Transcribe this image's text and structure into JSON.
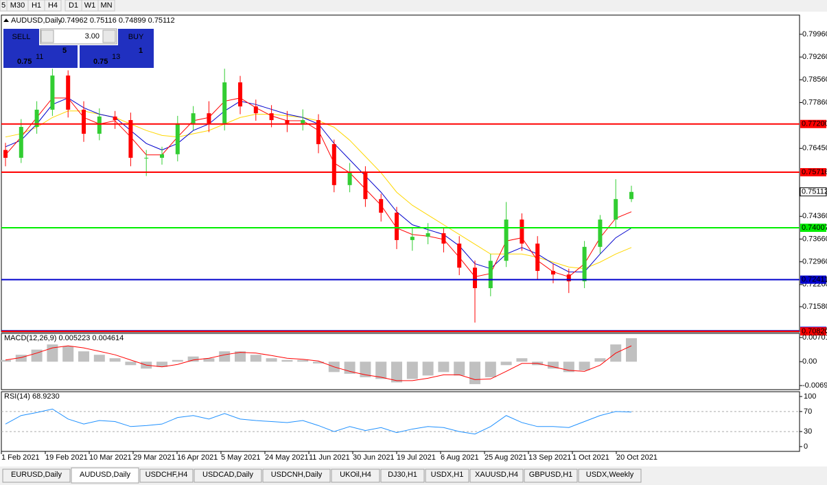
{
  "toolbar": [
    "5",
    "M30",
    "H1",
    "H4",
    "D1",
    "W1",
    "MN"
  ],
  "trade_panel": {
    "sell": "SELL",
    "buy": "BUY",
    "volume": "3.00",
    "bid": {
      "prefix": "0.75",
      "big": "11",
      "small": "5"
    },
    "ask": {
      "prefix": "0.75",
      "big": "13",
      "small": "1"
    }
  },
  "chart_data": {
    "type": "candlestick",
    "title": "AUDUSD,Daily",
    "ohlc_text": "0.74962 0.75116 0.74899 0.75112",
    "x_labels": [
      "1 Feb 2021",
      "19 Feb 2021",
      "10 Mar 2021",
      "29 Mar 2021",
      "16 Apr 2021",
      "5 May 2021",
      "24 May 2021",
      "11 Jun 2021",
      "30 Jun 2021",
      "19 Jul 2021",
      "6 Aug 2021",
      "25 Aug 2021",
      "13 Sep 2021",
      "1 Oct 2021",
      "20 Oct 2021"
    ],
    "up_color": "#32cd32",
    "down_color": "#ff0000",
    "open": [
      0.764,
      0.7616,
      0.7711,
      0.7764,
      0.7869,
      0.7764,
      0.769,
      0.7743,
      0.7732,
      0.7616,
      0.7616,
      0.7627,
      0.7722,
      0.7753,
      0.7722,
      0.7848,
      0.7774,
      0.7753,
      0.7732,
      0.7722,
      0.7732,
      0.7658,
      0.7532,
      0.7574,
      0.7489,
      0.7447,
      0.7363,
      0.7373,
      0.7384,
      0.7352,
      0.7278,
      0.7215,
      0.7299,
      0.7426,
      0.7352,
      0.7268,
      0.7257,
      0.7236,
      0.7342,
      0.7426,
      0.7489
    ],
    "high": [
      0.7662,
      0.7735,
      0.779,
      0.789,
      0.7885,
      0.779,
      0.7768,
      0.776,
      0.7755,
      0.764,
      0.765,
      0.7745,
      0.7775,
      0.779,
      0.789,
      0.7868,
      0.7795,
      0.7778,
      0.776,
      0.7765,
      0.775,
      0.7672,
      0.76,
      0.759,
      0.7505,
      0.7465,
      0.74,
      0.7415,
      0.74,
      0.7375,
      0.73,
      0.732,
      0.748,
      0.7445,
      0.7375,
      0.729,
      0.7275,
      0.736,
      0.744,
      0.755,
      0.753
    ],
    "low": [
      0.759,
      0.76,
      0.769,
      0.7745,
      0.774,
      0.7665,
      0.767,
      0.7705,
      0.759,
      0.756,
      0.7595,
      0.7605,
      0.77,
      0.7695,
      0.77,
      0.775,
      0.773,
      0.771,
      0.7695,
      0.77,
      0.763,
      0.751,
      0.751,
      0.7465,
      0.742,
      0.7335,
      0.733,
      0.735,
      0.7325,
      0.7255,
      0.7109,
      0.719,
      0.728,
      0.733,
      0.724,
      0.723,
      0.72,
      0.7215,
      0.732,
      0.74,
      0.748
    ],
    "close": [
      0.7616,
      0.7711,
      0.7764,
      0.7869,
      0.7764,
      0.769,
      0.7743,
      0.7732,
      0.7616,
      0.7616,
      0.7627,
      0.7722,
      0.7753,
      0.7722,
      0.7848,
      0.7774,
      0.7753,
      0.7732,
      0.7722,
      0.7732,
      0.7658,
      0.7532,
      0.7574,
      0.7489,
      0.7447,
      0.7363,
      0.7373,
      0.7384,
      0.7352,
      0.7278,
      0.7215,
      0.7299,
      0.7426,
      0.7352,
      0.7268,
      0.7257,
      0.7236,
      0.7342,
      0.7426,
      0.7489,
      0.7511
    ],
    "moving_averages": [
      {
        "color": "#ffd700",
        "values": [
          0.768,
          0.769,
          0.771,
          0.774,
          0.776,
          0.776,
          0.775,
          0.774,
          0.772,
          0.77,
          0.7685,
          0.768,
          0.769,
          0.77,
          0.772,
          0.774,
          0.775,
          0.775,
          0.7745,
          0.774,
          0.773,
          0.771,
          0.767,
          0.762,
          0.757,
          0.751,
          0.747,
          0.744,
          0.741,
          0.738,
          0.735,
          0.732,
          0.732,
          0.732,
          0.731,
          0.7295,
          0.728,
          0.7275,
          0.7295,
          0.732,
          0.734
        ]
      },
      {
        "color": "#0000cd",
        "values": [
          0.765,
          0.767,
          0.772,
          0.778,
          0.78,
          0.777,
          0.775,
          0.774,
          0.77,
          0.766,
          0.764,
          0.766,
          0.77,
          0.772,
          0.776,
          0.779,
          0.778,
          0.7765,
          0.775,
          0.774,
          0.772,
          0.766,
          0.761,
          0.756,
          0.751,
          0.745,
          0.741,
          0.7395,
          0.738,
          0.7345,
          0.729,
          0.7275,
          0.732,
          0.734,
          0.732,
          0.729,
          0.7265,
          0.7265,
          0.732,
          0.737,
          0.74
        ]
      },
      {
        "color": "#ff0000",
        "values": [
          0.7625,
          0.768,
          0.774,
          0.78,
          0.78,
          0.774,
          0.772,
          0.773,
          0.768,
          0.7625,
          0.7625,
          0.768,
          0.773,
          0.774,
          0.779,
          0.78,
          0.777,
          0.7745,
          0.773,
          0.773,
          0.77,
          0.76,
          0.757,
          0.752,
          0.747,
          0.74,
          0.738,
          0.7375,
          0.7365,
          0.731,
          0.725,
          0.726,
          0.736,
          0.737,
          0.73,
          0.7265,
          0.725,
          0.729,
          0.737,
          0.743,
          0.745
        ]
      }
    ],
    "ylim": [
      0.708,
      0.8055
    ],
    "yticks": [
      {
        "value": 0.7996,
        "label": "0.79960"
      },
      {
        "value": 0.7926,
        "label": "0.79260"
      },
      {
        "value": 0.7856,
        "label": "0.78560"
      },
      {
        "value": 0.7786,
        "label": "0.77860"
      },
      {
        "value": 0.7645,
        "label": "0.76450"
      },
      {
        "value": 0.7436,
        "label": "0.74360"
      },
      {
        "value": 0.7366,
        "label": "0.73660"
      },
      {
        "value": 0.7296,
        "label": "0.72960"
      },
      {
        "value": 0.7226,
        "label": "0.72260"
      },
      {
        "value": 0.7158,
        "label": "0.71580"
      }
    ],
    "levels": [
      {
        "value": 0.70836,
        "label": "0.70836",
        "color": "#0000cd"
      },
      {
        "value": 0.772,
        "label": "0.77200",
        "color": "#ff0000"
      },
      {
        "value": 0.75716,
        "label": "0.75716",
        "color": "#ff0000"
      },
      {
        "value": 0.74007,
        "label": "0.74007",
        "color": "#00ee00"
      },
      {
        "value": 0.72411,
        "label": "0.72411",
        "color": "#0000cd"
      },
      {
        "value": 0.7082,
        "label": "0.70820",
        "color": "#ff0000"
      }
    ],
    "current": {
      "value": 0.75112,
      "label": "0.75112"
    },
    "macd": {
      "title": "MACD(12,26,9) 0.005223 0.004614",
      "hist_color": "#c0c0c0",
      "signal_color": "#ff0000",
      "ylim": [
        -0.0081,
        0.0082
      ],
      "yticks": [
        {
          "value": 0.00701,
          "label": "0.00701"
        },
        {
          "value": 0,
          "label": "0.00"
        },
        {
          "value": -0.00692,
          "label": "-0.00692"
        }
      ],
      "histogram": [
        0.0005,
        0.002,
        0.0035,
        0.005,
        0.0045,
        0.003,
        0.002,
        0.001,
        -0.001,
        -0.002,
        -0.0015,
        0.0005,
        0.0015,
        0.001,
        0.003,
        0.003,
        0.002,
        0.001,
        0.0005,
        0.0005,
        -0.0005,
        -0.003,
        -0.0035,
        -0.0045,
        -0.005,
        -0.006,
        -0.005,
        -0.004,
        -0.003,
        -0.004,
        -0.0065,
        -0.0045,
        -0.001,
        0.001,
        -0.001,
        -0.002,
        -0.003,
        -0.0025,
        0.001,
        0.005,
        0.0068
      ],
      "signal": [
        0.0005,
        0.0012,
        0.0025,
        0.004,
        0.0046,
        0.004,
        0.003,
        0.002,
        0.0005,
        -0.001,
        -0.0015,
        -0.0008,
        0.0005,
        0.001,
        0.002,
        0.0027,
        0.0025,
        0.0018,
        0.001,
        0.0007,
        0.0002,
        -0.0015,
        -0.0028,
        -0.0038,
        -0.0045,
        -0.0055,
        -0.0055,
        -0.0048,
        -0.0038,
        -0.0038,
        -0.0052,
        -0.005,
        -0.0028,
        -0.0005,
        -0.0005,
        -0.0015,
        -0.0025,
        -0.0028,
        -0.001,
        0.0025,
        0.0046
      ]
    },
    "rsi": {
      "title": "RSI(14) 68.9230",
      "color": "#1e90ff",
      "ylim": [
        -9.6,
        109.6
      ],
      "yticks": [
        100,
        70,
        30,
        0
      ],
      "levels": [
        70,
        30
      ],
      "values": [
        45,
        62,
        68,
        75,
        55,
        45,
        52,
        50,
        40,
        42,
        45,
        58,
        62,
        55,
        66,
        55,
        52,
        50,
        48,
        52,
        42,
        30,
        40,
        32,
        38,
        28,
        35,
        40,
        38,
        30,
        25,
        40,
        62,
        48,
        40,
        40,
        38,
        50,
        62,
        70,
        69
      ]
    }
  },
  "tabs": [
    "EURUSD,Daily",
    "AUDUSD,Daily",
    "USDCHF,H4",
    "USDCAD,Daily",
    "USDCNH,Daily",
    "UKOil,H4",
    "DJ30,H1",
    "USDX,H1",
    "XAUUSD,H4",
    "GBPUSD,H1",
    "USDX,Weekly"
  ],
  "active_tab": 1
}
